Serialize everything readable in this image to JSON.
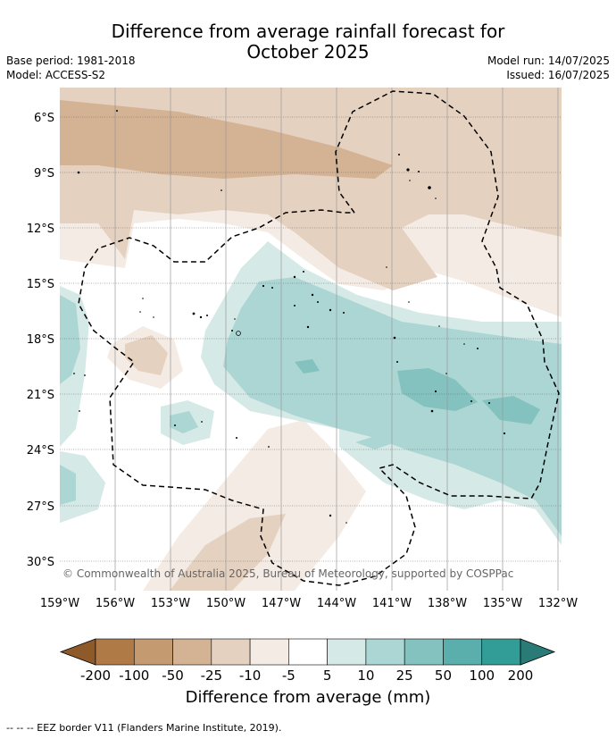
{
  "title_line1": "Difference from average rainfall forecast for",
  "title_line2": "October 2025",
  "meta_left": {
    "base_period": "Base period: 1981-2018",
    "model": "Model: ACCESS-S2"
  },
  "meta_right": {
    "model_run": "Model run: 14/07/2025",
    "issued": "Issued: 16/07/2025"
  },
  "copyright": "© Commonwealth of Australia 2025, Bureau of Meteorology, supported by COSPPac",
  "lat_labels": [
    "6°S",
    "9°S",
    "12°S",
    "15°S",
    "18°S",
    "21°S",
    "24°S",
    "27°S",
    "30°S"
  ],
  "lon_labels": [
    "159°W",
    "156°W",
    "153°W",
    "150°W",
    "147°W",
    "144°W",
    "141°W",
    "138°W",
    "135°W",
    "132°W"
  ],
  "colorbar": {
    "ticks": [
      "-200",
      "-100",
      "-50",
      "-25",
      "-10",
      "-5",
      "5",
      "10",
      "25",
      "50",
      "100",
      "200"
    ],
    "colors": [
      "#8e5a2a",
      "#b07a46",
      "#c49a70",
      "#d4b294",
      "#e5d1c0",
      "#f4ebe4",
      "#ffffff",
      "#d5e9e7",
      "#acd6d3",
      "#83c2bf",
      "#5aaeab",
      "#329c97",
      "#2a7b77"
    ],
    "label": "Difference from average (mm)"
  },
  "footer": "--  --  -- EEZ border V11 (Flanders Marine Institute, 2019)."
}
